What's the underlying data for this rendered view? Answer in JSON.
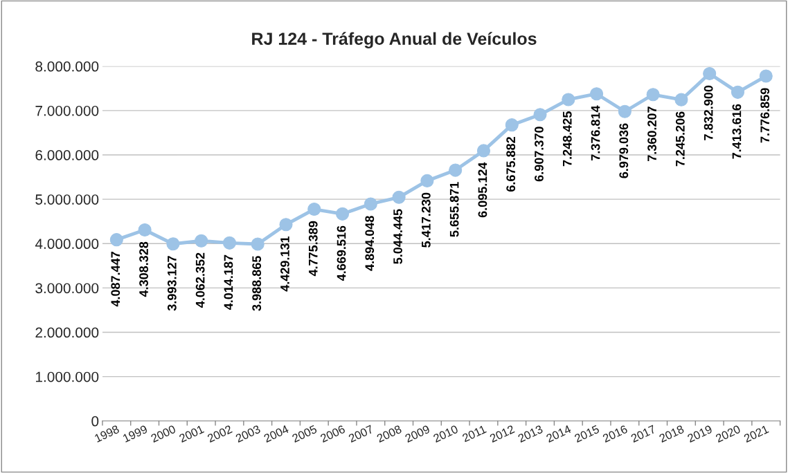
{
  "chart_data": {
    "type": "line",
    "title": "RJ 124 - Tráfego Anual de Veículos",
    "categories": [
      "1998",
      "1999",
      "2000",
      "2001",
      "2002",
      "2003",
      "2004",
      "2005",
      "2006",
      "2007",
      "2008",
      "2009",
      "2010",
      "2011",
      "2012",
      "2013",
      "2014",
      "2015",
      "2016",
      "2017",
      "2018",
      "2019",
      "2020",
      "2021"
    ],
    "series": [
      {
        "color": "#9dc3e6",
        "values": [
          4087447,
          4308328,
          3993127,
          4062352,
          4014187,
          3988865,
          4429131,
          4775389,
          4669516,
          4894048,
          5044445,
          5417230,
          5655871,
          6095124,
          6675882,
          6907370,
          7248425,
          7376814,
          6979036,
          7360207,
          7245206,
          7832900,
          7413616,
          7776859
        ],
        "value_labels": [
          "4.087.447",
          "4.308.328",
          "3.993.127",
          "4.062.352",
          "4.014.187",
          "3.988.865",
          "4.429.131",
          "4.775.389",
          "4.669.516",
          "4.894.048",
          "5.044.445",
          "5.417.230",
          "5.655.871",
          "6.095.124",
          "6.675.882",
          "6.907.370",
          "7.248.425",
          "7.376.814",
          "6.979.036",
          "7.360.207",
          "7.245.206",
          "7.832.900",
          "7.413.616",
          "7.776.859"
        ]
      }
    ],
    "ylim": [
      0,
      8000000
    ],
    "yticks": [
      0,
      {
        "value": 1000000,
        "label": "1.000.000"
      },
      {
        "value": 2000000,
        "label": "2.000.000"
      },
      {
        "value": 3000000,
        "label": "3.000.000"
      },
      {
        "value": 4000000,
        "label": "4.000.000"
      },
      {
        "value": 5000000,
        "label": "5.000.000"
      },
      {
        "value": 6000000,
        "label": "6.000.000"
      },
      {
        "value": 7000000,
        "label": "7.000.000"
      },
      {
        "value": 8000000,
        "label": "8.000.000"
      }
    ],
    "grid": "y",
    "marker": "circle",
    "line_style": "solid",
    "legend": false
  }
}
